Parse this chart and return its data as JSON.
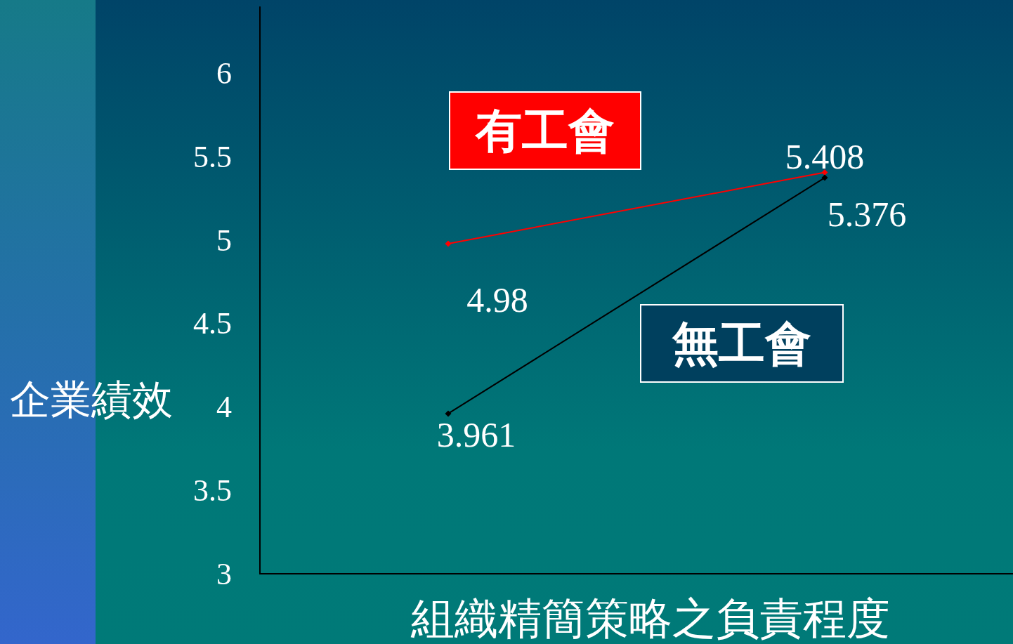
{
  "chart_data": {
    "type": "line",
    "xlabel": "組織精簡策略之負責程度",
    "ylabel": "企業績效",
    "categories": [
      null,
      null
    ],
    "series": [
      {
        "name": "有工會",
        "color": "#ff0000",
        "values": [
          4.98,
          5.408
        ]
      },
      {
        "name": "無工會",
        "color": "#000000",
        "values": [
          3.961,
          5.376
        ]
      }
    ],
    "ylim": [
      3,
      6.4
    ],
    "yticks": [
      3,
      3.5,
      4,
      4.5,
      5,
      5.5,
      6
    ],
    "grid": false,
    "legend": false,
    "marker": "diamond",
    "line_style": "solid",
    "data_labels": true
  }
}
